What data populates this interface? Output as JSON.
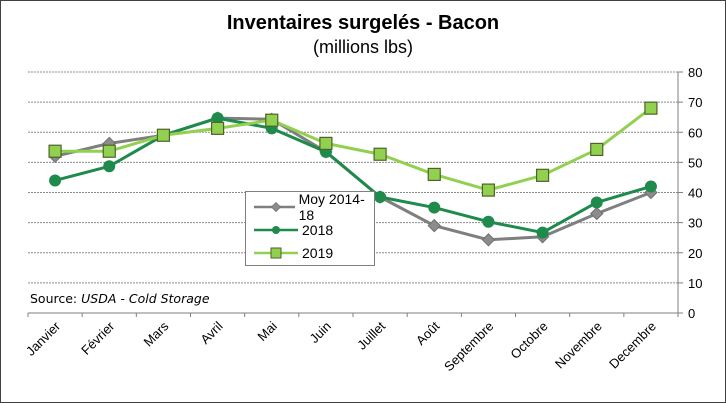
{
  "chart_data": {
    "type": "line",
    "title": "Inventaires surgelés - Bacon",
    "subtitle": "(millions lbs)",
    "xlabel": "",
    "ylabel": "",
    "categories": [
      "Janvier",
      "Février",
      "Mars",
      "Avril",
      "Mai",
      "Juin",
      "Juillet",
      "Août",
      "Septembre",
      "Octobre",
      "Novembre",
      "Decembre"
    ],
    "ylim": [
      0,
      80
    ],
    "yticks": [
      0,
      10,
      20,
      30,
      40,
      50,
      60,
      70,
      80
    ],
    "y_axis_side": "right",
    "grid": true,
    "legend_position": "center-left",
    "series": [
      {
        "name": "Moy 2014-18",
        "marker": "diamond",
        "color": "#7f7f7f",
        "marker_fill": "#8c8c8c",
        "values": [
          52,
          56.3,
          59,
          64.7,
          64.3,
          53.5,
          38.5,
          29,
          24.3,
          25.3,
          33,
          40
        ]
      },
      {
        "name": "2018",
        "marker": "circle",
        "color": "#1e8a4c",
        "marker_fill": "#1e8a4c",
        "values": [
          44,
          48.7,
          59,
          64.7,
          61.3,
          53.5,
          38.5,
          35,
          30.3,
          26.7,
          36.7,
          42
        ]
      },
      {
        "name": "2019",
        "marker": "square",
        "color": "#92d050",
        "marker_fill": "#92d050",
        "marker_stroke": "#4f6228",
        "values": [
          53.7,
          53.7,
          59,
          61.3,
          64,
          56.3,
          52.7,
          46,
          40.8,
          45.7,
          54.3,
          68
        ]
      }
    ],
    "annotations": [
      {
        "text_prefix": "Source: ",
        "text_italic": "USDA - Cold Storage",
        "position": "bottom-left"
      }
    ]
  }
}
